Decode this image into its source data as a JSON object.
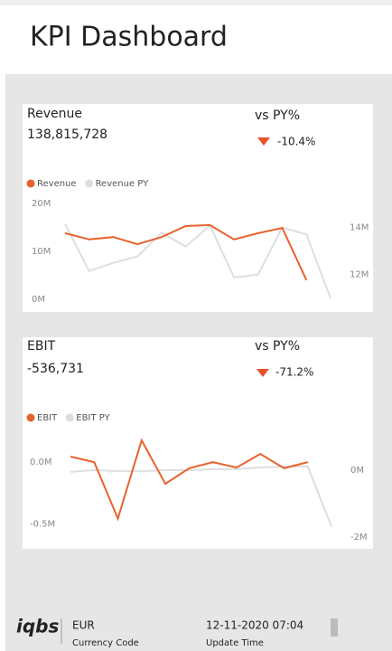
{
  "header": {
    "title": "KPI Dashboard"
  },
  "cards": [
    {
      "title": "Revenue",
      "value": "138,815,728",
      "compare_label": "vs PY%",
      "compare_value": "-10.4%"
    },
    {
      "title": "EBIT",
      "value": "-536,731",
      "compare_label": "vs PY%",
      "compare_value": "-71.2%"
    }
  ],
  "chart_data": [
    {
      "type": "line",
      "categories": [
        null,
        null,
        null,
        null,
        null,
        null,
        null,
        null,
        null,
        null,
        null,
        null
      ],
      "series": [
        {
          "name": "Revenue",
          "color": "#e8622c",
          "values": [
            13.8,
            12.5,
            13.0,
            11.5,
            13.0,
            15.3,
            15.5,
            12.5,
            13.8,
            14.9,
            4.0,
            null
          ]
        },
        {
          "name": "Revenue PY",
          "color": "#dedede",
          "axis": "y2",
          "values": [
            14.15,
            12.15,
            12.5,
            12.77,
            13.77,
            13.19,
            14.08,
            11.88,
            12.0,
            14.0,
            13.7,
            11.0
          ]
        }
      ],
      "ylim": [
        -0.75,
        21.9
      ],
      "yticks": [
        {
          "value": 0,
          "label": "0M"
        },
        {
          "value": 10,
          "label": "10M"
        },
        {
          "value": 20,
          "label": "20M"
        }
      ],
      "y2lim": [
        10.8,
        15.4
      ],
      "y2ticks": [
        {
          "value": 12,
          "label": "12M"
        },
        {
          "value": 14,
          "label": "14M"
        }
      ],
      "legend": "top-left"
    },
    {
      "type": "line",
      "categories": [
        null,
        null,
        null,
        null,
        null,
        null,
        null,
        null,
        null,
        null,
        null,
        null
      ],
      "series": [
        {
          "name": "EBIT",
          "color": "#e8622c",
          "values": [
            0.044,
            0,
            -0.456,
            0.176,
            -0.176,
            -0.05,
            0,
            -0.044,
            0.066,
            -0.05,
            0,
            null
          ]
        },
        {
          "name": "EBIT PY",
          "color": "#dedede",
          "axis": "y2",
          "values": [
            -0.05,
            0,
            -0.03,
            -0.03,
            0,
            0,
            0.03,
            0.03,
            0.08,
            0.11,
            0.11,
            -1.68
          ]
        }
      ],
      "ylim": [
        -0.65,
        0.3
      ],
      "yticks": [
        {
          "value": -0.5,
          "label": "-0.5M"
        },
        {
          "value": 0,
          "label": "0.0M"
        }
      ],
      "y2lim": [
        -2.16,
        1.35
      ],
      "y2ticks": [
        {
          "value": -2,
          "label": "-2M"
        },
        {
          "value": 0,
          "label": "0M"
        }
      ],
      "legend": "top-left"
    }
  ],
  "footer": {
    "logo": "iqbs",
    "currency": "EUR",
    "currency_label": "Currency Code",
    "update": "12-11-2020 07:04",
    "update_label": "Update Time"
  }
}
